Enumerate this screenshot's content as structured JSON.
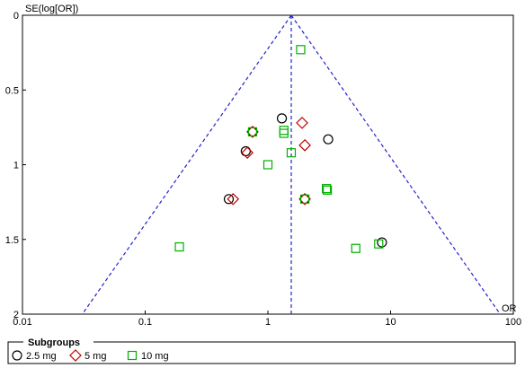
{
  "chart_data": {
    "type": "scatter",
    "ylabel": "SE(log[OR])",
    "xlabel": "OR",
    "x_scale": "log",
    "xlim": [
      0.01,
      100
    ],
    "x_ticks": [
      0.01,
      0.1,
      1,
      10,
      100
    ],
    "x_tick_labels": [
      "0.01",
      "0.1",
      "1",
      "10",
      "100"
    ],
    "ylim": [
      0,
      2
    ],
    "y_inverted": true,
    "y_ticks": [
      0,
      0.5,
      1,
      1.5,
      2
    ],
    "y_tick_labels": [
      "0",
      "0.5",
      "1",
      "1.5",
      "2"
    ],
    "pooled_or": 1.55,
    "funnel_limits": "dashed blue pseudo 95% confidence limits",
    "legend": {
      "title": "Subgroups",
      "entries": [
        "2.5 mg",
        "5 mg",
        "10 mg"
      ],
      "placement": "bottom"
    },
    "series": [
      {
        "name": "2.5 mg",
        "marker": "circle",
        "color": "#000000",
        "points": [
          {
            "x": 0.75,
            "y": 0.78
          },
          {
            "x": 1.3,
            "y": 0.69
          },
          {
            "x": 3.1,
            "y": 0.83
          },
          {
            "x": 0.66,
            "y": 0.91
          },
          {
            "x": 0.48,
            "y": 1.23
          },
          {
            "x": 2.0,
            "y": 1.23
          },
          {
            "x": 8.5,
            "y": 1.52
          }
        ]
      },
      {
        "name": "5 mg",
        "marker": "diamond",
        "color": "#c00000",
        "points": [
          {
            "x": 1.9,
            "y": 0.72
          },
          {
            "x": 0.75,
            "y": 0.78
          },
          {
            "x": 2.0,
            "y": 0.87
          },
          {
            "x": 0.68,
            "y": 0.92
          },
          {
            "x": 0.52,
            "y": 1.23
          },
          {
            "x": 2.0,
            "y": 1.23
          }
        ]
      },
      {
        "name": "10 mg",
        "marker": "square",
        "color": "#00b000",
        "points": [
          {
            "x": 1.85,
            "y": 0.23
          },
          {
            "x": 1.35,
            "y": 0.77
          },
          {
            "x": 0.75,
            "y": 0.78
          },
          {
            "x": 1.35,
            "y": 0.79
          },
          {
            "x": 1.55,
            "y": 0.92
          },
          {
            "x": 1.0,
            "y": 1.0
          },
          {
            "x": 3.0,
            "y": 1.16
          },
          {
            "x": 3.05,
            "y": 1.17
          },
          {
            "x": 2.0,
            "y": 1.23
          },
          {
            "x": 0.19,
            "y": 1.55
          },
          {
            "x": 5.2,
            "y": 1.56
          },
          {
            "x": 8.0,
            "y": 1.53
          }
        ]
      }
    ]
  }
}
